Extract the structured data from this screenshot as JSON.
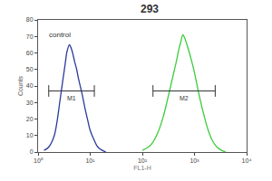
{
  "chart_data": {
    "type": "line",
    "title": "293",
    "x_label": "FL1-H",
    "y_label": "Counts",
    "log": "x",
    "xlim": [
      1,
      10000
    ],
    "xticks": [
      {
        "value": 1,
        "label": "10⁰"
      },
      {
        "value": 10,
        "label": "10¹"
      },
      {
        "value": 100,
        "label": "10²"
      },
      {
        "value": 1000,
        "label": "10³"
      },
      {
        "value": 10000,
        "label": "10⁴"
      }
    ],
    "ylim": [
      0,
      80
    ],
    "yticks": [
      0,
      10,
      20,
      30,
      40,
      50,
      60,
      70,
      80
    ],
    "grid": false,
    "series": [
      {
        "color": "#2b3a9b",
        "x": [
          1.3,
          1.6,
          2,
          2.3,
          2.6,
          3,
          3.3,
          3.6,
          4,
          4.3,
          4.6,
          5,
          5.5,
          6,
          7,
          8,
          9,
          10,
          12,
          14,
          17,
          20
        ],
        "values": [
          1,
          3,
          9,
          18,
          30,
          44,
          53,
          61,
          65,
          63,
          60,
          55,
          50,
          44,
          35,
          26,
          19,
          13,
          7,
          3,
          1,
          0
        ]
      },
      {
        "color": "#3dcc3d",
        "x": [
          100,
          130,
          160,
          200,
          250,
          300,
          350,
          400,
          450,
          500,
          550,
          600,
          650,
          700,
          800,
          900,
          1000,
          1200,
          1500,
          1800,
          2200,
          2700,
          3300,
          4000
        ],
        "values": [
          1,
          3,
          6,
          12,
          21,
          31,
          40,
          48,
          55,
          62,
          67,
          71,
          69,
          66,
          60,
          54,
          48,
          36,
          23,
          14,
          7,
          3,
          1,
          0
        ]
      }
    ],
    "annotations": [
      {
        "text": "control",
        "x": 2.6,
        "y": 71
      }
    ],
    "gates": [
      {
        "label": "M1",
        "x": [
          1.6,
          12
        ],
        "y": 37
      },
      {
        "label": "M2",
        "x": [
          160,
          2500
        ],
        "y": 37
      }
    ]
  }
}
